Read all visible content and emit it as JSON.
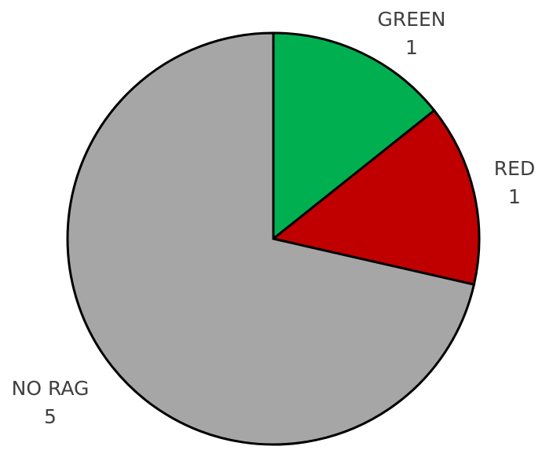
{
  "chart_data": {
    "type": "pie",
    "title": "",
    "legend": "none",
    "slices": [
      {
        "label": "GREEN",
        "value": 1,
        "color": "#00B050"
      },
      {
        "label": "RED",
        "value": 1,
        "color": "#C00000"
      },
      {
        "label": "NO RAG",
        "value": 5,
        "color": "#A6A6A6"
      }
    ],
    "data_labels": {
      "show_category": true,
      "show_value": true
    }
  }
}
